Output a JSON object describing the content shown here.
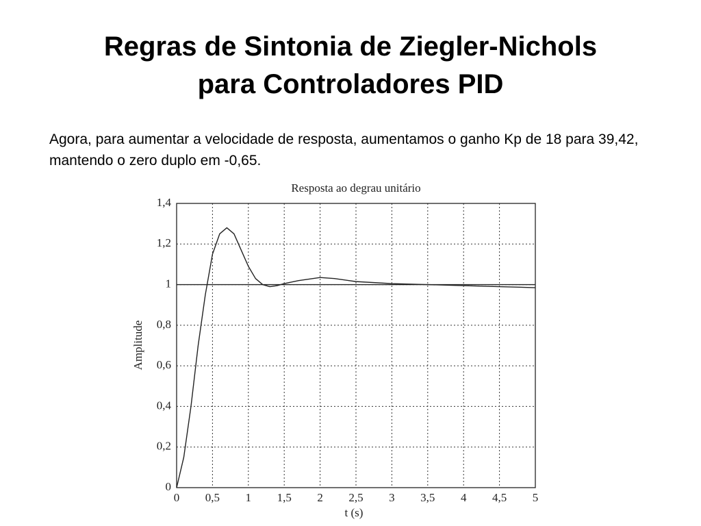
{
  "title": [
    "Regras de Sintonia de Ziegler-Nichols",
    "para Controladores PID"
  ],
  "paragraph": "Agora, para aumentar a velocidade de resposta, aumentamos o ganho Kp de 18 para 39,42, mantendo o zero duplo em -0,65.",
  "chart_data": {
    "type": "line",
    "title": "Resposta ao degrau unitário",
    "x_label": "t (s)",
    "y_label": "Amplitude",
    "xlim": [
      0,
      5
    ],
    "ylim": [
      0,
      1.4
    ],
    "xticks": [
      0,
      {
        "value": 0.5,
        "label": "0,5"
      },
      1,
      {
        "value": 1.5,
        "label": "1,5"
      },
      2,
      {
        "value": 2.5,
        "label": "2,5"
      },
      3,
      {
        "value": 3.5,
        "label": "3,5"
      },
      4,
      {
        "value": 4.5,
        "label": "4,5"
      },
      5
    ],
    "yticks": [
      0,
      {
        "value": 0.2,
        "label": "0,2"
      },
      {
        "value": 0.4,
        "label": "0,4"
      },
      {
        "value": 0.6,
        "label": "0,6"
      },
      {
        "value": 0.8,
        "label": "0,8"
      },
      1,
      {
        "value": 1.2,
        "label": "1,2"
      },
      {
        "value": 1.4,
        "label": "1,4"
      }
    ],
    "grid": true,
    "series": [
      {
        "color": "#222222",
        "x": [
          0,
          0.1,
          0.2,
          0.3,
          0.4,
          0.5,
          0.6,
          0.7,
          0.8,
          0.9,
          1.0,
          1.1,
          1.2,
          1.3,
          1.4,
          1.5,
          1.7,
          1.9,
          2.0,
          2.2,
          2.5,
          3.0,
          3.5,
          4.0,
          4.5,
          5.0
        ],
        "values": [
          0,
          0.15,
          0.4,
          0.7,
          0.95,
          1.15,
          1.25,
          1.28,
          1.25,
          1.17,
          1.09,
          1.03,
          1.0,
          0.99,
          0.995,
          1.005,
          1.02,
          1.03,
          1.035,
          1.03,
          1.015,
          1.005,
          1.0,
          0.995,
          0.99,
          0.985
        ]
      },
      {
        "color": "#222222",
        "x": [
          0,
          5
        ],
        "values": [
          1,
          1
        ]
      }
    ]
  }
}
